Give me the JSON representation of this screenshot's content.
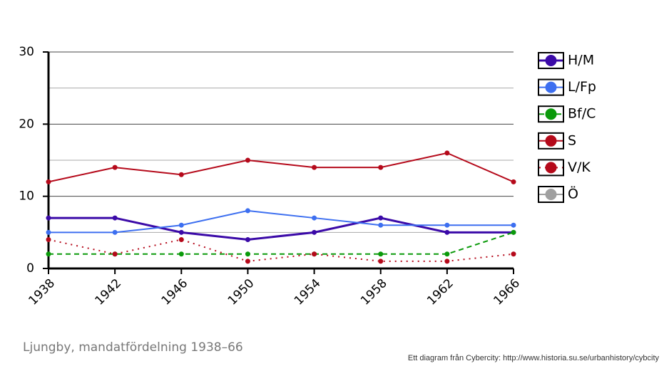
{
  "chart_data": {
    "type": "line",
    "caption": "Ljungby, mandatfördelning 1938–66",
    "credit": "Ett diagram från Cybercity: http://www.historia.su.se/urbanhistory/cybcity",
    "x": [
      1938,
      1942,
      1946,
      1950,
      1954,
      1958,
      1962,
      1966
    ],
    "xlim": [
      1938,
      1966
    ],
    "xticks": [
      1938,
      1942,
      1946,
      1950,
      1954,
      1958,
      1962,
      1966
    ],
    "ylim": [
      0,
      30
    ],
    "yticks": [
      0,
      10,
      20,
      30
    ],
    "minor_yticks": [
      5,
      15,
      25
    ],
    "grid": true,
    "legend": "right",
    "series": [
      {
        "name": "H/M",
        "color": "#3b0aa8",
        "dash": "solid",
        "width": 3,
        "values": [
          7,
          7,
          5,
          4,
          5,
          7,
          5,
          5
        ]
      },
      {
        "name": "L/Fp",
        "color": "#3d6ff0",
        "dash": "solid",
        "width": 2,
        "values": [
          5,
          5,
          6,
          8,
          7,
          6,
          6,
          6
        ]
      },
      {
        "name": "Bf/C",
        "color": "#0a9a0a",
        "dash": "dashed",
        "width": 2,
        "values": [
          2,
          2,
          2,
          2,
          2,
          2,
          2,
          5
        ]
      },
      {
        "name": "S",
        "color": "#b5091a",
        "dash": "solid",
        "width": 2,
        "values": [
          12,
          14,
          13,
          15,
          14,
          14,
          16,
          12
        ]
      },
      {
        "name": "V/K",
        "color": "#b5091a",
        "dash": "dotted",
        "width": 2,
        "values": [
          4,
          2,
          4,
          1,
          2,
          1,
          1,
          2
        ]
      },
      {
        "name": "Ö",
        "color": "#a0a0a0",
        "dash": "solid",
        "width": 2,
        "values": [
          null,
          null,
          null,
          null,
          null,
          null,
          null,
          null
        ]
      }
    ]
  }
}
